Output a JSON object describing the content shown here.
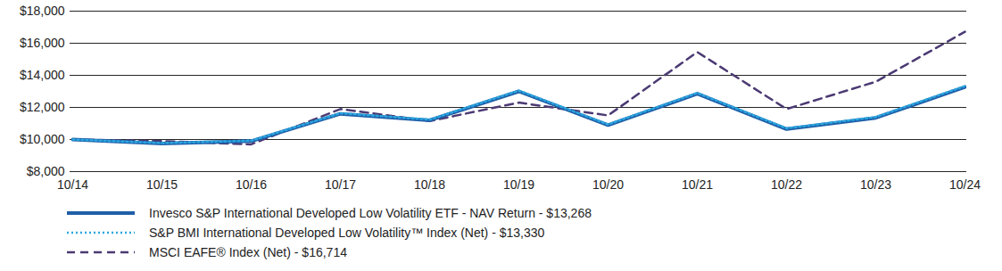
{
  "chart_data": {
    "type": "line",
    "categories": [
      "10/14",
      "10/15",
      "10/16",
      "10/17",
      "10/18",
      "10/19",
      "10/20",
      "10/21",
      "10/22",
      "10/23",
      "10/24"
    ],
    "series": [
      {
        "name": "Invesco S&P International Developed Low Volatility ETF - NAV Return - $13,268",
        "color": "#1f5fa8",
        "line_style": "solid",
        "values": [
          10000,
          9750,
          9900,
          11600,
          11200,
          13000,
          10900,
          12850,
          10650,
          11350,
          13268
        ]
      },
      {
        "name": "S&P BMI International Developed Low Volatility™ Index (Net) - $13,330",
        "color": "#2aa7e0",
        "line_style": "dotted",
        "values": [
          10000,
          9780,
          9930,
          11640,
          11240,
          13050,
          10940,
          12900,
          10700,
          11400,
          13330
        ]
      },
      {
        "name": "MSCI EAFE® Index (Net) - $16,714",
        "color": "#4b3a73",
        "line_style": "dashed",
        "values": [
          10000,
          9900,
          9700,
          11900,
          11150,
          12300,
          11500,
          15450,
          11900,
          13600,
          16714
        ]
      }
    ],
    "ylim": [
      8000,
      18000
    ],
    "yticks": [
      {
        "value": 8000,
        "label": "$8,000"
      },
      {
        "value": 10000,
        "label": "$10,000"
      },
      {
        "value": 12000,
        "label": "$12,000"
      },
      {
        "value": 14000,
        "label": "$14,000"
      },
      {
        "value": 16000,
        "label": "$16,000"
      },
      {
        "value": 18000,
        "label": "$18,000"
      }
    ],
    "grid": true,
    "legend": "bottom"
  }
}
